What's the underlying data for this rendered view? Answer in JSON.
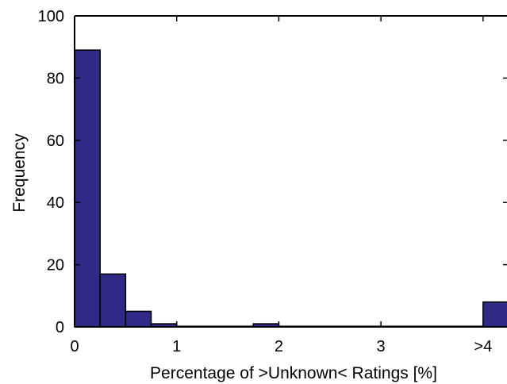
{
  "chart_data": {
    "type": "bar",
    "histogram": true,
    "xlabel": "Percentage of >Unknown< Ratings [%]",
    "ylabel": "Frequency",
    "ylim": [
      0,
      100
    ],
    "xlim": [
      0,
      4.25
    ],
    "bin_width": 0.25,
    "yticks": [
      0,
      20,
      40,
      60,
      80,
      100
    ],
    "xticks": [
      {
        "value": 0,
        "label": "0"
      },
      {
        "value": 1,
        "label": "1"
      },
      {
        "value": 2,
        "label": "2"
      },
      {
        "value": 3,
        "label": "3"
      },
      {
        "value": 4,
        "label": ">4"
      }
    ],
    "bins": [
      {
        "start": 0.0,
        "value": 89
      },
      {
        "start": 0.25,
        "value": 17
      },
      {
        "start": 0.5,
        "value": 5
      },
      {
        "start": 0.75,
        "value": 1
      },
      {
        "start": 1.0,
        "value": 0
      },
      {
        "start": 1.25,
        "value": 0
      },
      {
        "start": 1.5,
        "value": 0
      },
      {
        "start": 1.75,
        "value": 1
      },
      {
        "start": 2.0,
        "value": 0
      },
      {
        "start": 2.25,
        "value": 0
      },
      {
        "start": 2.5,
        "value": 0
      },
      {
        "start": 2.75,
        "value": 0
      },
      {
        "start": 3.0,
        "value": 0
      },
      {
        "start": 3.25,
        "value": 0
      },
      {
        "start": 3.5,
        "value": 0
      },
      {
        "start": 3.75,
        "value": 0
      },
      {
        "start": 4.0,
        "value": 8
      }
    ],
    "bar_color": "#2e2a86",
    "grid": false
  }
}
